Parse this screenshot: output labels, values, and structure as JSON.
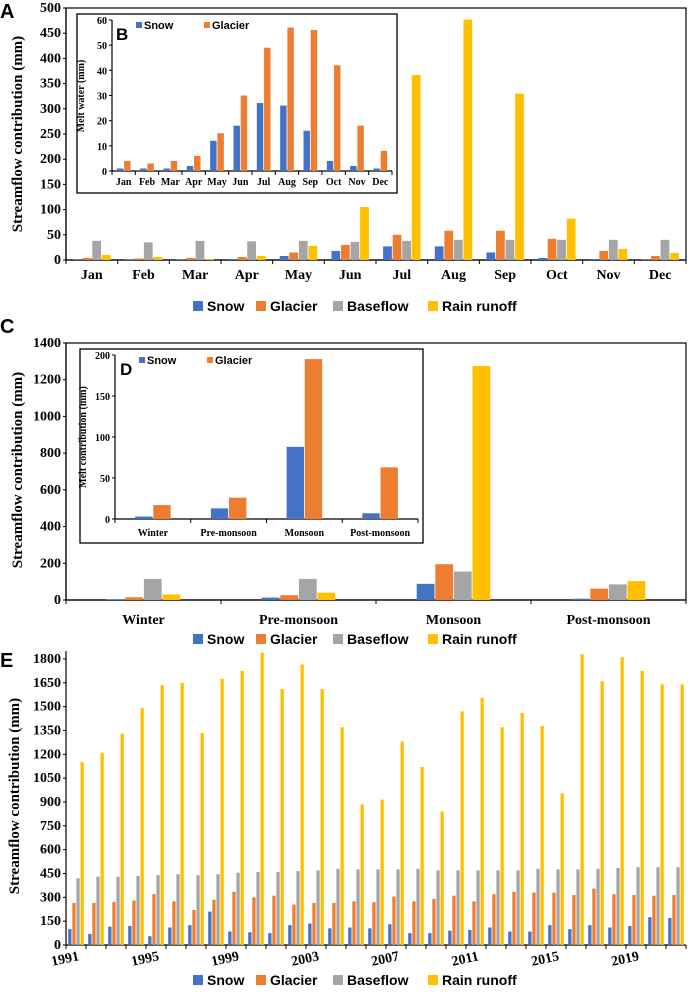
{
  "colors": {
    "Snow": "#4472C4",
    "Glacier": "#ED7D31",
    "Baseflow": "#A5A5A5",
    "Rain runoff": "#FFC000"
  },
  "legend_labels": [
    "Snow",
    "Glacier",
    "Baseflow",
    "Rain runoff"
  ],
  "panel_labels": {
    "A": "A",
    "B": "B",
    "C": "C",
    "D": "D",
    "E": "E"
  },
  "chart_data": [
    {
      "id": "A",
      "type": "bar",
      "title": "",
      "ylabel": "Streamflow contribution (mm)",
      "xlabel": "",
      "ylim": [
        0,
        500
      ],
      "yticks": [
        0,
        50,
        100,
        150,
        200,
        250,
        300,
        350,
        400,
        450,
        500
      ],
      "categories": [
        "Jan",
        "Feb",
        "Mar",
        "Apr",
        "May",
        "Jun",
        "Jul",
        "Aug",
        "Sep",
        "Oct",
        "Nov",
        "Dec"
      ],
      "series": [
        {
          "name": "Snow",
          "values": [
            1,
            1,
            1,
            2,
            8,
            18,
            27,
            27,
            15,
            4,
            2,
            1
          ]
        },
        {
          "name": "Glacier",
          "values": [
            4,
            3,
            4,
            6,
            15,
            30,
            50,
            58,
            58,
            42,
            18,
            8
          ]
        },
        {
          "name": "Baseflow",
          "values": [
            38,
            35,
            38,
            37,
            38,
            36,
            38,
            40,
            40,
            40,
            40,
            40
          ]
        },
        {
          "name": "Rain runoff",
          "values": [
            10,
            6,
            2,
            8,
            28,
            105,
            367,
            477,
            330,
            82,
            22,
            14
          ]
        }
      ],
      "legend": "bottom"
    },
    {
      "id": "B",
      "type": "bar",
      "inset_of": "A",
      "title": "",
      "ylabel": "Melt water (mm)",
      "xlabel": "",
      "ylim": [
        0,
        60
      ],
      "yticks": [
        0,
        10,
        20,
        30,
        40,
        50,
        60
      ],
      "categories": [
        "Jan",
        "Feb",
        "Mar",
        "Apr",
        "May",
        "Jun",
        "Jul",
        "Aug",
        "Sep",
        "Oct",
        "Nov",
        "Dec"
      ],
      "series": [
        {
          "name": "Snow",
          "values": [
            1,
            1,
            1,
            2,
            12,
            18,
            27,
            26,
            16,
            4,
            2,
            1
          ]
        },
        {
          "name": "Glacier",
          "values": [
            4,
            3,
            4,
            6,
            15,
            30,
            49,
            57,
            56,
            42,
            18,
            8
          ]
        }
      ],
      "legend": "top-left"
    },
    {
      "id": "C",
      "type": "bar",
      "title": "",
      "ylabel": "Streamflow contribution (mm)",
      "xlabel": "",
      "ylim": [
        0,
        1400
      ],
      "yticks": [
        0,
        200,
        400,
        600,
        800,
        1000,
        1200,
        1400
      ],
      "categories": [
        "Winter",
        "Pre-monsoon",
        "Monsoon",
        "Post-monsoon"
      ],
      "series": [
        {
          "name": "Snow",
          "values": [
            3,
            13,
            88,
            7
          ]
        },
        {
          "name": "Glacier",
          "values": [
            15,
            26,
            195,
            62
          ]
        },
        {
          "name": "Baseflow",
          "values": [
            115,
            115,
            155,
            85
          ]
        },
        {
          "name": "Rain runoff",
          "values": [
            30,
            40,
            1275,
            103
          ]
        }
      ],
      "legend": "bottom"
    },
    {
      "id": "D",
      "type": "bar",
      "inset_of": "C",
      "title": "",
      "ylabel": "Melt contribution (mm)",
      "xlabel": "",
      "ylim": [
        0,
        200
      ],
      "yticks": [
        0,
        50,
        100,
        150,
        200
      ],
      "categories": [
        "Winter",
        "Pre-monsoon",
        "Monsoon",
        "Post-monsoon"
      ],
      "series": [
        {
          "name": "Snow",
          "values": [
            3,
            13,
            88,
            7
          ]
        },
        {
          "name": "Glacier",
          "values": [
            17,
            26,
            195,
            63
          ]
        }
      ],
      "legend": "top-left"
    },
    {
      "id": "E",
      "type": "bar",
      "title": "",
      "ylabel": "Streamflow contribution (mm)",
      "xlabel": "",
      "ylim": [
        0,
        1850
      ],
      "yticks": [
        0,
        150,
        300,
        450,
        600,
        750,
        900,
        1050,
        1200,
        1350,
        1500,
        1650,
        1800
      ],
      "categories": [
        "1991",
        "1992",
        "1993",
        "1994",
        "1995",
        "1996",
        "1997",
        "1998",
        "1999",
        "2000",
        "2001",
        "2002",
        "2003",
        "2004",
        "2005",
        "2006",
        "2007",
        "2008",
        "2009",
        "2010",
        "2011",
        "2012",
        "2013",
        "2014",
        "2015",
        "2016",
        "2017",
        "2018",
        "2019",
        "2020",
        "2021"
      ],
      "xtick_labels": [
        "1991",
        "1995",
        "1999",
        "2003",
        "2007",
        "2011",
        "2015",
        "2019"
      ],
      "series": [
        {
          "name": "Snow",
          "values": [
            100,
            70,
            115,
            120,
            55,
            110,
            125,
            210,
            85,
            80,
            75,
            125,
            135,
            105,
            110,
            105,
            130,
            75,
            75,
            90,
            95,
            110,
            85,
            85,
            125,
            100,
            125,
            110,
            120,
            175,
            170
          ]
        },
        {
          "name": "Glacier",
          "values": [
            265,
            265,
            270,
            280,
            320,
            275,
            220,
            285,
            335,
            300,
            310,
            255,
            265,
            265,
            275,
            270,
            305,
            275,
            290,
            310,
            275,
            320,
            335,
            330,
            330,
            315,
            355,
            320,
            315,
            310,
            315
          ]
        },
        {
          "name": "Baseflow",
          "values": [
            420,
            430,
            430,
            435,
            440,
            445,
            440,
            445,
            455,
            460,
            460,
            465,
            470,
            480,
            475,
            475,
            475,
            480,
            470,
            470,
            470,
            470,
            470,
            480,
            475,
            475,
            480,
            485,
            490,
            490,
            490
          ]
        },
        {
          "name": "Rain runoff",
          "values": [
            1150,
            1210,
            1330,
            1490,
            1635,
            1650,
            1335,
            1675,
            1725,
            1840,
            1610,
            1765,
            1610,
            1370,
            885,
            915,
            1280,
            1120,
            840,
            1470,
            1555,
            1370,
            1460,
            1380,
            955,
            1830,
            1660,
            1810,
            1725,
            1640,
            1640
          ]
        }
      ],
      "legend": "bottom"
    }
  ]
}
